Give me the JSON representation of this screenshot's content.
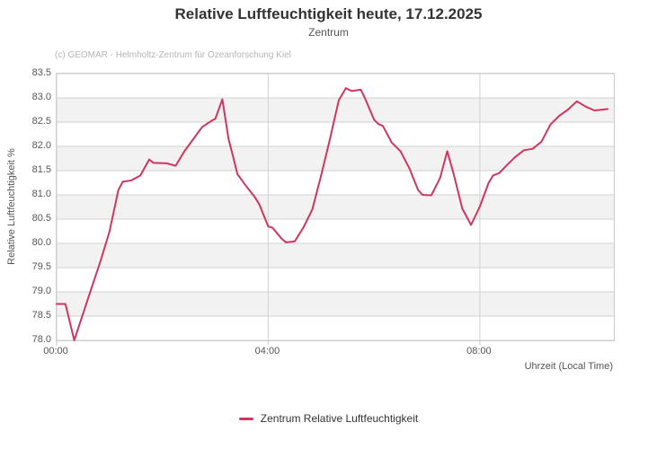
{
  "chart_data": {
    "type": "line",
    "title": "Relative Luftfeuchtigkeit heute, 17.12.2025",
    "subtitle": "Zentrum",
    "credits": "(c) GEOMAR - Helmholtz-Zentrum für Ozeanforschung Kiel",
    "xlabel": "Uhrzeit (Local Time)",
    "ylabel": "Relative Luftfeuchtigkeit %",
    "ylim": [
      78.0,
      83.5
    ],
    "y_tick_step": 0.5,
    "x_ticks": [
      "00:00",
      "04:00",
      "08:00"
    ],
    "x_range_minutes": [
      0,
      632
    ],
    "grid": true,
    "grid_color": "#d2d2d2",
    "band_colors": [
      "#ffffff",
      "#f2f2f2"
    ],
    "legend_position": "bottom",
    "series": [
      {
        "name": "Zentrum Relative Luftfeuchtigkeit",
        "color": "#ce3660",
        "x": [
          "00:00",
          "00:10",
          "00:20",
          "00:30",
          "00:40",
          "00:50",
          "01:00",
          "01:10",
          "01:15",
          "01:25",
          "01:35",
          "01:45",
          "01:50",
          "02:05",
          "02:15",
          "02:25",
          "02:35",
          "02:45",
          "02:55",
          "03:00",
          "03:08",
          "03:15",
          "03:20",
          "03:25",
          "03:35",
          "03:45",
          "03:50",
          "04:00",
          "04:05",
          "04:15",
          "04:20",
          "04:30",
          "04:40",
          "04:50",
          "05:00",
          "05:10",
          "05:20",
          "05:28",
          "05:35",
          "05:45",
          "05:50",
          "06:00",
          "06:05",
          "06:10",
          "06:20",
          "06:30",
          "06:40",
          "06:50",
          "06:55",
          "07:05",
          "07:15",
          "07:23",
          "07:30",
          "07:40",
          "07:50",
          "08:00",
          "08:10",
          "08:15",
          "08:22",
          "08:30",
          "08:40",
          "08:50",
          "09:00",
          "09:10",
          "09:20",
          "09:30",
          "09:40",
          "09:50",
          "10:00",
          "10:10",
          "10:20",
          "10:25"
        ],
        "values": [
          78.75,
          78.75,
          78.0,
          78.55,
          79.1,
          79.65,
          80.25,
          81.1,
          81.27,
          81.3,
          81.4,
          81.73,
          81.66,
          81.65,
          81.6,
          81.9,
          82.15,
          82.4,
          82.52,
          82.57,
          82.97,
          82.15,
          81.8,
          81.43,
          81.18,
          80.95,
          80.8,
          80.35,
          80.32,
          80.1,
          80.02,
          80.04,
          80.33,
          80.7,
          81.4,
          82.15,
          82.95,
          83.2,
          83.14,
          83.17,
          82.98,
          82.55,
          82.46,
          82.42,
          82.08,
          81.9,
          81.55,
          81.1,
          81.0,
          80.99,
          81.35,
          81.9,
          81.45,
          80.72,
          80.38,
          80.76,
          81.25,
          81.4,
          81.45,
          81.6,
          81.78,
          81.92,
          81.95,
          82.1,
          82.45,
          82.63,
          82.76,
          82.93,
          82.82,
          82.74,
          82.76,
          82.77
        ]
      }
    ]
  }
}
